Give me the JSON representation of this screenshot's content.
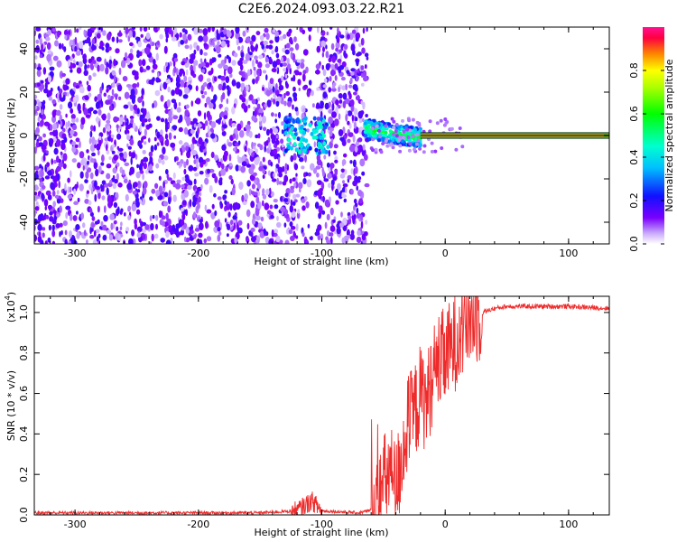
{
  "chart_data": [
    {
      "type": "heatmap",
      "title": "C2E6.2024.093.03.22.R21",
      "xlabel": "Height of straight line (km)",
      "ylabel": "Frequency (Hz)",
      "xlim": [
        -333,
        133
      ],
      "ylim": [
        -50,
        50
      ],
      "xticks": [
        "-300",
        "-200",
        "-100",
        "0",
        "100"
      ],
      "yticks": [
        "-40",
        "-20",
        "0",
        "20",
        "40"
      ],
      "colorbar": {
        "label": "Normalized spectral amplitude",
        "range": [
          0,
          1
        ],
        "ticks": [
          "0.0",
          "0.2",
          "0.4",
          "0.6",
          "0.8"
        ]
      },
      "regions": [
        {
          "x": [
            -333,
            -63
          ],
          "y": [
            -50,
            50
          ],
          "kind": "noise",
          "amplitude": 0.1
        },
        {
          "x": [
            -130,
            -95
          ],
          "y": [
            -8,
            8
          ],
          "kind": "weak-signal",
          "amplitude": 0.3
        },
        {
          "x": [
            -65,
            -20
          ],
          "y": [
            -5,
            7
          ],
          "kind": "signal",
          "amplitude": 0.45
        },
        {
          "x": [
            -20,
            133
          ],
          "y": [
            -1,
            1
          ],
          "kind": "carrier-line",
          "amplitude": 0.95
        }
      ],
      "grid": false
    },
    {
      "type": "line",
      "xlabel": "Height of straight line (km)",
      "ylabel": "SNR (10 * v/v)",
      "scale_label": "(x10",
      "scale_exp": "4",
      "xlim": [
        -333,
        133
      ],
      "ylim": [
        0,
        1.08
      ],
      "xticks": [
        "-300",
        "-200",
        "-100",
        "0",
        "100"
      ],
      "yticks": [
        "0.0",
        "0.2",
        "0.4",
        "0.6",
        "0.8",
        "1.0"
      ],
      "series": [
        {
          "color": "#ee2a2a",
          "x": [
            -333,
            -250,
            -150,
            -120,
            -108,
            -100,
            -70,
            -55,
            -50,
            -45,
            -40,
            -35,
            -30,
            -25,
            -20,
            -15,
            -10,
            -5,
            0,
            5,
            10,
            15,
            20,
            30,
            40,
            50,
            70,
            100,
            133
          ],
          "y": [
            0.01,
            0.01,
            0.01,
            0.02,
            0.07,
            0.02,
            0.01,
            0.03,
            0.15,
            0.22,
            0.12,
            0.3,
            0.45,
            0.5,
            0.6,
            0.55,
            0.7,
            0.75,
            0.78,
            0.82,
            0.88,
            0.93,
            0.97,
            1.0,
            1.02,
            1.03,
            1.03,
            1.03,
            1.02
          ]
        }
      ],
      "grid": false
    }
  ]
}
